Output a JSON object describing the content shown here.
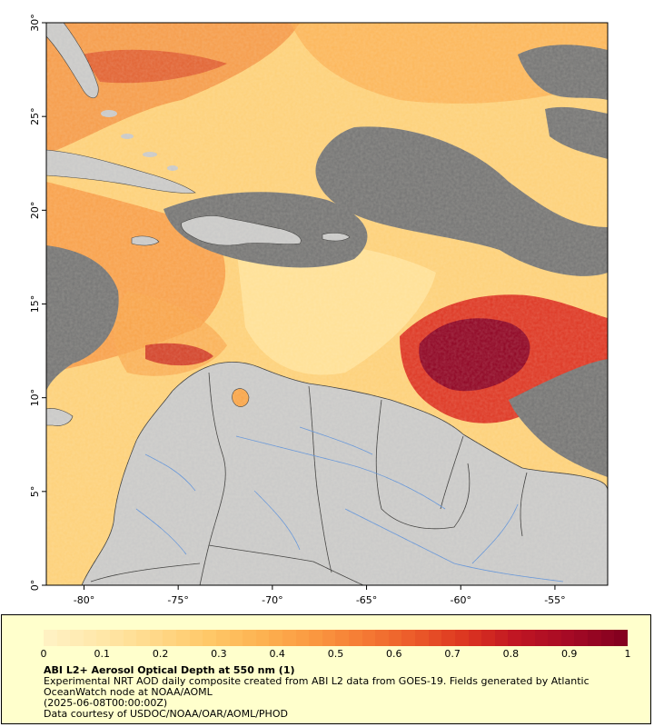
{
  "map": {
    "x_ticks": [
      "-80°",
      "-75°",
      "-70°",
      "-65°",
      "-60°",
      "-55°"
    ],
    "y_ticks": [
      "30°",
      "25°",
      "20°",
      "15°",
      "10°",
      "5°",
      "0°"
    ],
    "colors": {
      "land": "#c8c8c8",
      "no_data": "#737373",
      "border": "#333333",
      "river": "#5b8fd8"
    }
  },
  "legend": {
    "ticks": [
      "0",
      "0.1",
      "0.2",
      "0.3",
      "0.4",
      "0.5",
      "0.6",
      "0.7",
      "0.8",
      "0.9",
      "1"
    ],
    "title": "ABI L2+ Aerosol Optical Depth at 550 nm (1)",
    "line1": "Experimental NRT AOD daily composite created from ABI L2 data from GOES-19. Fields generated by Atlantic",
    "line2": "OceanWatch node at NOAA/AOML",
    "line3": "(2025-06-08T00:00:00Z)",
    "line4": "Data courtesy of USDOC/NOAA/OAR/AOML/PHOD",
    "colormap": [
      "#fff1c2",
      "#ffe7a8",
      "#ffd98a",
      "#ffc96a",
      "#fdb452",
      "#fb9a42",
      "#f57c34",
      "#ec5b2a",
      "#dc3520",
      "#c01523",
      "#a50a25",
      "#85001f"
    ]
  }
}
